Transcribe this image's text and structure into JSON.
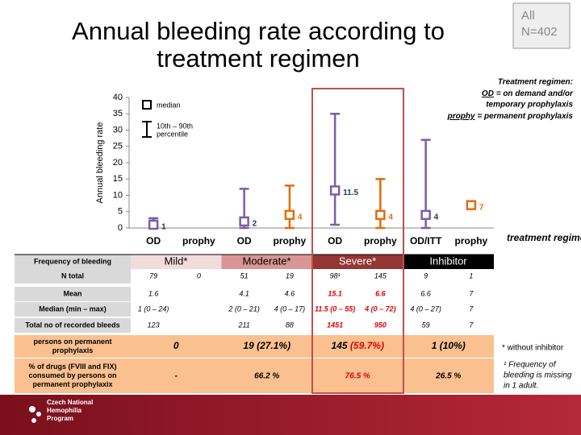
{
  "header": {
    "title": "Annual bleeding rate according to treatment regimen",
    "population": [
      "All",
      "N=402"
    ]
  },
  "chart_data": {
    "type": "range",
    "y_label": "Annual bleeding rate",
    "x_label": "treatment regimen",
    "categories": [
      "OD",
      "prophy",
      "OD",
      "prophy",
      "OD",
      "prophy",
      "OD/ITT",
      "prophy"
    ],
    "values": [
      1,
      null,
      2,
      4,
      11.5,
      4,
      4,
      7
    ],
    "lows": [
      0,
      null,
      0,
      0,
      1,
      0,
      0,
      7
    ],
    "highs": [
      3,
      null,
      12,
      13,
      35,
      15,
      27,
      7
    ],
    "colors": [
      "#7e5ca8",
      "#e46c0a",
      "#7e5ca8",
      "#e46c0a",
      "#7e5ca8",
      "#e46c0a",
      "#7e5ca8",
      "#e46c0a"
    ],
    "label_colors": [
      "#1f3864",
      "#e46c0a",
      "#1f3864",
      "#e46c0a",
      "#1f3864",
      "#e46c0a",
      "#1f3864",
      "#e46c0a"
    ],
    "ylim": [
      0,
      40
    ],
    "yticks": [
      0,
      5,
      10,
      15,
      20,
      25,
      30,
      35,
      40
    ],
    "legend": {
      "median": "median",
      "range_line1": "10th – 90th",
      "range_line2": "percentile"
    }
  },
  "notes": {
    "heading": "Treatment regimen:",
    "od_term": "OD",
    "od_text": "= on demand and/or",
    "od_text2": "temporary prophylaxis",
    "prophy_term": "prophy",
    "prophy_text": "= permanent prophylaxis",
    "asterisk": "* without inhibitor",
    "footnote": [
      "¹ Frequency of",
      "bleeding is missing",
      "in 1 adult."
    ]
  },
  "table": {
    "header_label": "Frequency of bleeding",
    "groups": [
      "Mild*",
      "Moderate*",
      "Severe*",
      "Inhibitor"
    ],
    "highlight_group": 2,
    "rows": [
      {
        "label": "N total",
        "cells": [
          "79",
          "0",
          "51",
          "19",
          "98¹",
          "145",
          "9",
          "1"
        ]
      },
      {
        "label": "Mean",
        "cells": [
          "1.6",
          null,
          "4.1",
          "4.6",
          "15.1",
          "6.6",
          "6.6",
          "7"
        ]
      },
      {
        "label": "Median (min – max)",
        "cells": [
          "1 (0 – 24)",
          null,
          "2 (0 – 21)",
          "4 (0 – 17)",
          "11.5 (0 – 55)",
          "4 (0 – 72)",
          "4 (0 – 27)",
          "7"
        ]
      },
      {
        "label": "Total no of recorded bleeds",
        "cells": [
          "123",
          null,
          "211",
          "88",
          "1451",
          "950",
          "59",
          "7"
        ]
      }
    ],
    "summary_rows": [
      {
        "label": [
          "persons on permanent",
          "prophylaxis"
        ],
        "cells": [
          [
            "0",
            null
          ],
          [
            "19",
            "(27.1%)"
          ],
          [
            "145",
            "(59.7%)"
          ],
          [
            "1",
            "(10%)"
          ]
        ]
      },
      {
        "label": [
          "% of drugs (FVIII and FIX)",
          "consumed by persons on",
          "permanent prophylaxix"
        ],
        "cells": [
          [
            "-",
            null
          ],
          [
            "66.2 %",
            null
          ],
          [
            "76.5 %",
            null
          ],
          [
            "26.5 %",
            null
          ]
        ]
      }
    ]
  },
  "footer": {
    "logo": [
      "Czech National",
      "Hemophilia",
      "Program"
    ]
  }
}
